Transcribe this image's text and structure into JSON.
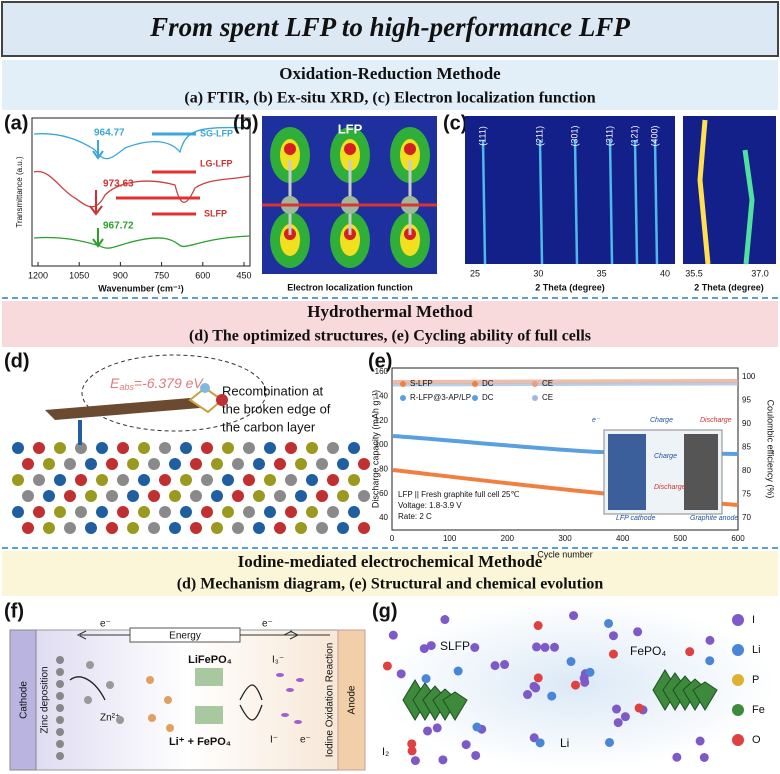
{
  "title": "From spent LFP to high-performance LFP",
  "section1": {
    "heading": "Oxidation-Reduction Methode",
    "subtitle": "(a) FTIR, (b) Ex-situ XRD, (c) Electron localization function",
    "panel_a": {
      "label": "(a)",
      "y_label": "Transmittance (a.u.)",
      "x_label": "Wavenumber (cm⁻¹)",
      "x_ticks": [
        1200,
        1050,
        900,
        750,
        600,
        450
      ],
      "legend": [
        "SG-LFP",
        "LG-LFP",
        "SLFP"
      ],
      "peaks": [
        964.77,
        973.63,
        967.72
      ]
    },
    "panel_b": {
      "label": "(b)",
      "name": "LFP",
      "caption": "Electron localization function"
    },
    "panel_c": {
      "label": "(c)",
      "planes": [
        "(111)",
        "(211)",
        "(301)",
        "(311)",
        "(121)",
        "(400)"
      ],
      "x_ticks": [
        25,
        30,
        35,
        40
      ],
      "inset_x_ticks": [
        35.5,
        "37.0"
      ],
      "x_label": "2 Theta (degree)",
      "inset_x_label": "2 Theta (degree)"
    }
  },
  "section2": {
    "heading": "Hydrothermal Method",
    "subtitle": "(d) The optimized structures, (e) Cycling ability of full cells",
    "panel_d": {
      "label": "(d)",
      "energy_symbol": "E",
      "energy_subscript": "abs",
      "energy_value": "=-6.379 eV",
      "annotation": [
        "Recombination at",
        "the broken edge of",
        "the carbon layer"
      ]
    },
    "panel_e": {
      "label": "(e)",
      "y_label": "Discharge capacity (mAh g⁻¹)",
      "y2_label": "Coulombic efficiency (%)",
      "x_label": "Cycle number",
      "y_ticks": [
        40,
        60,
        80,
        100,
        120,
        140,
        160
      ],
      "y2_ticks": [
        70,
        75,
        80,
        85,
        90,
        95,
        100
      ],
      "x_ticks": [
        0,
        100,
        200,
        300,
        400,
        500,
        600
      ],
      "legend": [
        "S-LFP",
        "DC",
        "CE",
        "R-LFP@3-AP/LP",
        "DC",
        "CE"
      ],
      "notes": [
        "LFP || Fresh graphite full cell 25℃",
        "Voltage: 1.8-3.9 V",
        "Rate: 2 C"
      ],
      "inset": [
        "Charge",
        "Discharge",
        "e⁻",
        "Charge",
        "Discharge",
        "LFP cathode",
        "Graphite anode"
      ]
    }
  },
  "section3": {
    "heading": "Iodine-mediated electrochemical Methode",
    "subtitle": "(d) Mechanism diagram, (e) Structural and chemical evolution",
    "panel_f": {
      "label": "(f)",
      "energy": "Energy",
      "electron_left": "e⁻",
      "electron_right": "e⁻",
      "cathode": "Cathode",
      "zinc": "Zinc deposition",
      "zn_ion": "Zn²⁺",
      "lifepo4": "LiFePO₄",
      "i3": "I₃⁻",
      "products": "Li⁺ + FePO₄",
      "iodide": "I⁻",
      "electron_out": "e⁻",
      "reaction": "Iodine Oxidation Reaction",
      "anode": "Anode"
    },
    "panel_g": {
      "label": "(g)",
      "start": "SLFP",
      "end": "FePO₄",
      "li": "Li",
      "i2": "I₂",
      "legend": [
        "I",
        "Li",
        "P",
        "Fe",
        "O"
      ]
    }
  }
}
